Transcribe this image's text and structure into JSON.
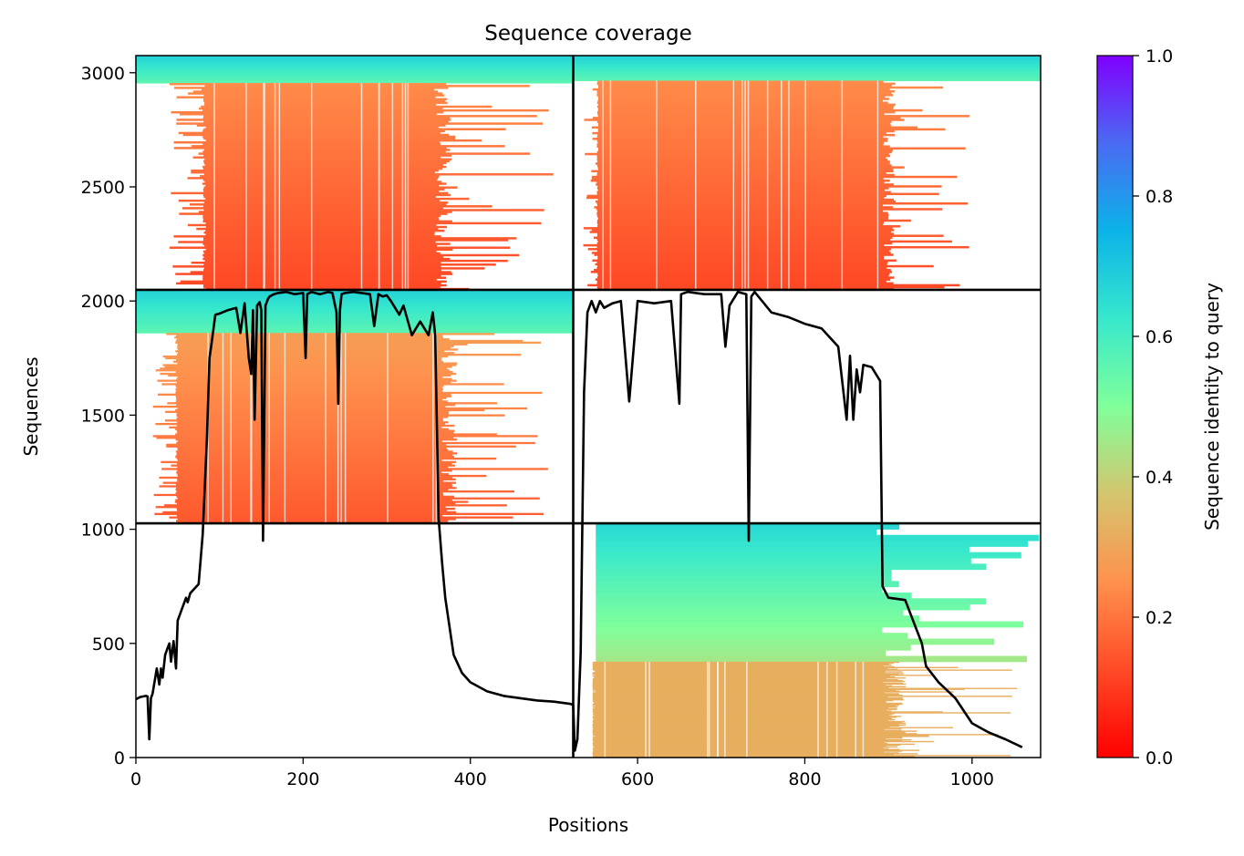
{
  "chart_data": {
    "type": "heatmap",
    "title": "Sequence coverage",
    "xlabel": "Positions",
    "ylabel": "Sequences",
    "xlim": [
      0,
      1082
    ],
    "ylim": [
      0,
      3075
    ],
    "x_ticks": [
      0,
      200,
      400,
      600,
      800,
      1000
    ],
    "y_ticks": [
      0,
      500,
      1000,
      1500,
      2000,
      2500,
      3000
    ],
    "colorbar": {
      "label": "Sequence identity to query",
      "range": [
        0,
        1
      ],
      "ticks": [
        "0.0",
        "0.2",
        "0.4",
        "0.6",
        "0.8",
        "1.0"
      ],
      "colormap": "rainbow_r"
    },
    "chain_boundaries": {
      "positions": [
        523
      ],
      "sequence_blocks": [
        1026,
        2049
      ]
    },
    "coverage_blocks": [
      {
        "x_range": [
          0,
          523
        ],
        "y_range": [
          2049,
          3075
        ],
        "top_identity_rows": [
          2955,
          3075
        ],
        "top_identity": 0.62,
        "body_x_range": [
          84,
          357
        ],
        "body_identity": [
          0.12,
          0.24
        ],
        "tail_x": [
          40,
          500
        ]
      },
      {
        "x_range": [
          523,
          1082
        ],
        "y_range": [
          2049,
          3075
        ],
        "top_identity_rows": [
          2965,
          3075
        ],
        "top_identity": 0.62,
        "body_x_range": [
          553,
          893
        ],
        "body_identity": [
          0.12,
          0.24
        ],
        "tail_x": [
          535,
          1000
        ]
      },
      {
        "x_range": [
          0,
          523
        ],
        "y_range": [
          1026,
          2049
        ],
        "top_identity_rows": [
          1860,
          2049
        ],
        "top_identity": 0.62,
        "body_x_range": [
          50,
          365
        ],
        "body_identity": [
          0.15,
          0.28
        ],
        "tail_x": [
          20,
          500
        ]
      },
      {
        "x_range": [
          523,
          1082
        ],
        "y_range": [
          0,
          1026
        ],
        "top_identity_rows": [
          420,
          1026
        ],
        "top_identity": [
          0.45,
          0.67
        ],
        "body_x_range": [
          546,
          893
        ],
        "body_identity": 0.32,
        "tail_x": [
          550,
          1082
        ]
      }
    ],
    "coverage_line": {
      "name": "coverage",
      "x": [
        0,
        5,
        12,
        14,
        16,
        18,
        20,
        25,
        28,
        30,
        32,
        35,
        38,
        40,
        42,
        45,
        48,
        50,
        55,
        60,
        62,
        65,
        70,
        75,
        80,
        85,
        88,
        90,
        95,
        100,
        110,
        120,
        125,
        130,
        135,
        138,
        140,
        142,
        145,
        148,
        150,
        152,
        155,
        158,
        160,
        165,
        170,
        180,
        190,
        200,
        203,
        205,
        210,
        220,
        230,
        235,
        240,
        242,
        244,
        246,
        250,
        260,
        270,
        280,
        285,
        290,
        295,
        300,
        305,
        310,
        315,
        320,
        330,
        340,
        350,
        355,
        358,
        362,
        366,
        370,
        380,
        390,
        400,
        420,
        440,
        460,
        480,
        500,
        520,
        523,
        525,
        528,
        532,
        536,
        540,
        545,
        550,
        555,
        560,
        570,
        580,
        590,
        600,
        620,
        640,
        650,
        652,
        660,
        680,
        700,
        705,
        710,
        720,
        730,
        733,
        736,
        740,
        760,
        780,
        800,
        820,
        840,
        850,
        854,
        858,
        862,
        866,
        870,
        880,
        890,
        893,
        900,
        920,
        940,
        945,
        960,
        980,
        1000,
        1020,
        1040,
        1060,
        1082
      ],
      "y": [
        255,
        265,
        270,
        268,
        80,
        260,
        280,
        390,
        320,
        390,
        350,
        450,
        480,
        500,
        420,
        510,
        390,
        600,
        650,
        700,
        680,
        720,
        740,
        760,
        980,
        1400,
        1750,
        1800,
        1940,
        1945,
        1960,
        1970,
        1860,
        1990,
        1750,
        1680,
        1960,
        1480,
        1980,
        1995,
        1960,
        950,
        1980,
        2010,
        2020,
        2030,
        2035,
        2040,
        2030,
        2035,
        1750,
        2030,
        2040,
        2030,
        2040,
        2035,
        1950,
        1550,
        1960,
        2030,
        2035,
        2040,
        2035,
        2030,
        1890,
        2030,
        2020,
        2025,
        2000,
        1970,
        1940,
        1980,
        1850,
        1910,
        1850,
        1950,
        1850,
        1050,
        860,
        700,
        450,
        370,
        330,
        290,
        270,
        260,
        250,
        245,
        235,
        230,
        30,
        80,
        460,
        1600,
        1950,
        2000,
        1950,
        2000,
        1970,
        1990,
        2000,
        1560,
        2000,
        1990,
        2000,
        1550,
        2030,
        2040,
        2030,
        2030,
        1800,
        1980,
        2040,
        2030,
        950,
        2020,
        2040,
        1950,
        1930,
        1900,
        1880,
        1800,
        1480,
        1760,
        1480,
        1700,
        1600,
        1720,
        1710,
        1650,
        750,
        700,
        690,
        500,
        400,
        330,
        260,
        150,
        110,
        80,
        45
      ]
    }
  }
}
